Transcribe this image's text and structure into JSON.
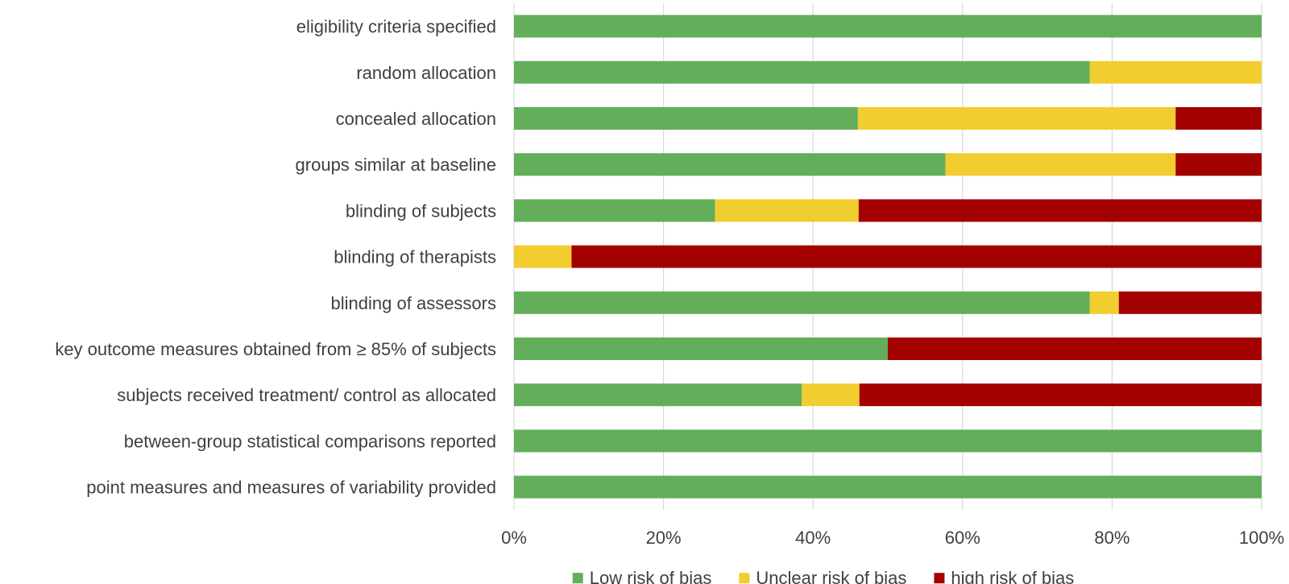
{
  "chart_data": {
    "type": "bar",
    "orientation": "horizontal",
    "stacked": true,
    "title": "",
    "xlabel": "",
    "ylabel": "",
    "xlim": [
      0,
      100
    ],
    "x_ticks": [
      0,
      20,
      40,
      60,
      80,
      100
    ],
    "x_tick_labels": [
      "0%",
      "20%",
      "40%",
      "60%",
      "80%",
      "100%"
    ],
    "grid": "vertical",
    "legend_position": "bottom",
    "categories": [
      "eligibility criteria specified",
      "random allocation",
      "concealed allocation",
      "groups similar at baseline",
      "blinding of subjects",
      "blinding of therapists",
      "blinding of assessors",
      "key outcome measures obtained from ≥ 85% of subjects",
      "subjects received treatment/ control as allocated",
      "between-group statistical comparisons reported",
      "point measures and measures of variability provided"
    ],
    "series": [
      {
        "name": "Low risk of bias",
        "color": "#62ae5a",
        "values": [
          100,
          77,
          46,
          57.7,
          26.9,
          0,
          77,
          50,
          38.5,
          100,
          100
        ]
      },
      {
        "name": "Unclear risk of bias",
        "color": "#f2cd2f",
        "values": [
          0,
          23,
          42.5,
          30.8,
          19.2,
          7.7,
          3.9,
          0,
          7.7,
          0,
          0
        ]
      },
      {
        "name": "high risk of bias",
        "color": "#a30000",
        "values": [
          0,
          0,
          11.5,
          11.5,
          53.9,
          92.3,
          19.1,
          50,
          53.8,
          0,
          0
        ]
      }
    ]
  },
  "colors": {
    "grid": "#d9d9d9",
    "text": "#404040"
  }
}
